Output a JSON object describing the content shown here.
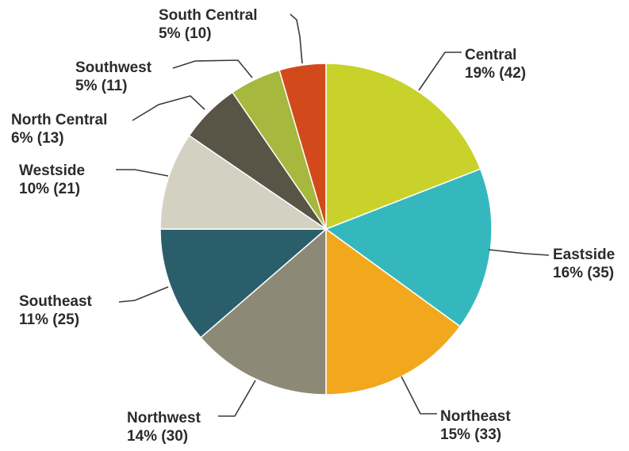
{
  "chart_data": {
    "type": "pie",
    "title": "",
    "start": "top (12 o'clock), clockwise",
    "slices": [
      {
        "name": "Central",
        "percent_label": "19% (42)",
        "value": 42,
        "color": "#c9d22a"
      },
      {
        "name": "Eastside",
        "percent_label": "16% (35)",
        "value": 35,
        "color": "#34b8bd"
      },
      {
        "name": "Northeast",
        "percent_label": "15% (33)",
        "value": 33,
        "color": "#f2a81d"
      },
      {
        "name": "Northwest",
        "percent_label": "14% (30)",
        "value": 30,
        "color": "#8c8a77"
      },
      {
        "name": "Southeast",
        "percent_label": "11% (25)",
        "value": 25,
        "color": "#2b5e6b"
      },
      {
        "name": "Westside",
        "percent_label": "10% (21)",
        "value": 21,
        "color": "#d3d1c2"
      },
      {
        "name": "North Central",
        "percent_label": "6% (13)",
        "value": 13,
        "color": "#585446"
      },
      {
        "name": "Southwest",
        "percent_label": "5% (11)",
        "value": 11,
        "color": "#a6b83d"
      },
      {
        "name": "South Central",
        "percent_label": "5% (10)",
        "value": 10,
        "color": "#d24a1b"
      }
    ]
  }
}
